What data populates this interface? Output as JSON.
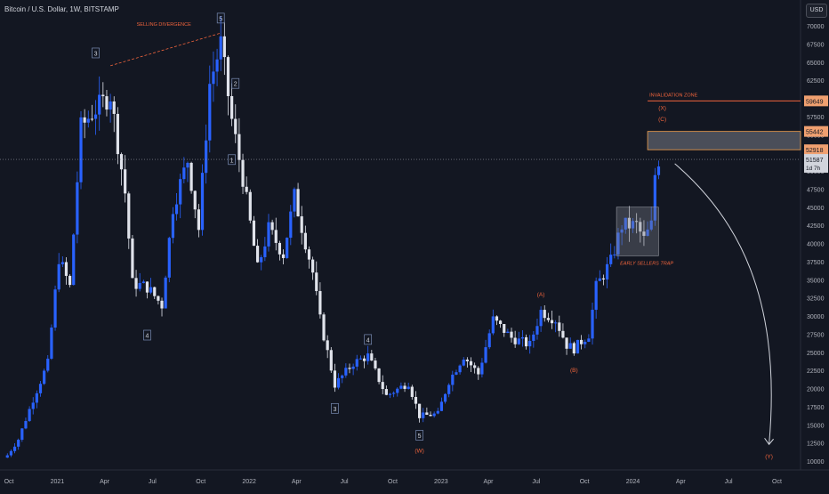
{
  "header": {
    "title": "Bitcoin / U.S. Dollar, 1W, BITSTAMP",
    "currency_button": "USD"
  },
  "colors": {
    "background": "#131722",
    "up": "#2962ff",
    "down": "#e0e3eb",
    "annotation": "#f0643c",
    "wave_label": "#7a8db5",
    "zone": "#787b86"
  },
  "chart_data": {
    "type": "candlestick",
    "title": "Bitcoin / U.S. Dollar, 1W, BITSTAMP",
    "xlabel": "",
    "ylabel": "",
    "ylim": [
      9000,
      71500
    ],
    "x_ticks": [
      "Oct",
      "2021",
      "Apr",
      "Jul",
      "Oct",
      "2022",
      "Apr",
      "Jul",
      "Oct",
      "2023",
      "Apr",
      "Jul",
      "Oct",
      "2024",
      "Apr",
      "Jul",
      "Oct"
    ],
    "y_ticks": [
      "70000",
      "67500",
      "65000",
      "62500",
      "60000",
      "57500",
      "55000",
      "52500",
      "50000",
      "47500",
      "45000",
      "42500",
      "40000",
      "37500",
      "35000",
      "32500",
      "30000",
      "27500",
      "25000",
      "22500",
      "20000",
      "17500",
      "15000",
      "12500",
      "10000"
    ],
    "price_markers": [
      {
        "label": "59649",
        "value": 59649
      },
      {
        "label": "55442",
        "value": 55442
      },
      {
        "label": "52918",
        "value": 52918
      }
    ],
    "last_price": {
      "value": 51587,
      "label": "51587",
      "countdown": "1d 7h"
    },
    "trend_points": [
      {
        "t": "2020-09-28",
        "c": 10800
      },
      {
        "t": "2020-10-19",
        "c": 13000
      },
      {
        "t": "2020-11-16",
        "c": 18500
      },
      {
        "t": "2020-12-14",
        "c": 23500
      },
      {
        "t": "2021-01-04",
        "c": 38000
      },
      {
        "t": "2021-01-25",
        "c": 34000
      },
      {
        "t": "2021-02-15",
        "c": 56000
      },
      {
        "t": "2021-03-08",
        "c": 58000
      },
      {
        "t": "2021-04-12",
        "c": 60500
      },
      {
        "t": "2021-05-10",
        "c": 47000
      },
      {
        "t": "2021-05-24",
        "c": 34500
      },
      {
        "t": "2021-06-21",
        "c": 34000
      },
      {
        "t": "2021-07-19",
        "c": 31500
      },
      {
        "t": "2021-08-09",
        "c": 45000
      },
      {
        "t": "2021-09-06",
        "c": 51500
      },
      {
        "t": "2021-09-27",
        "c": 42000
      },
      {
        "t": "2021-10-18",
        "c": 62000
      },
      {
        "t": "2021-11-08",
        "c": 67500
      },
      {
        "t": "2021-11-29",
        "c": 57000
      },
      {
        "t": "2021-12-20",
        "c": 49000
      },
      {
        "t": "2022-01-17",
        "c": 36500
      },
      {
        "t": "2022-02-07",
        "c": 42000
      },
      {
        "t": "2022-03-07",
        "c": 38500
      },
      {
        "t": "2022-03-28",
        "c": 46500
      },
      {
        "t": "2022-05-02",
        "c": 36000
      },
      {
        "t": "2022-05-16",
        "c": 29500
      },
      {
        "t": "2022-06-13",
        "c": 20500
      },
      {
        "t": "2022-07-18",
        "c": 23500
      },
      {
        "t": "2022-08-15",
        "c": 24500
      },
      {
        "t": "2022-09-19",
        "c": 19000
      },
      {
        "t": "2022-10-31",
        "c": 20800
      },
      {
        "t": "2022-11-21",
        "c": 16200
      },
      {
        "t": "2022-12-26",
        "c": 16500
      },
      {
        "t": "2023-01-16",
        "c": 21000
      },
      {
        "t": "2023-02-13",
        "c": 24500
      },
      {
        "t": "2023-03-13",
        "c": 22000
      },
      {
        "t": "2023-04-10",
        "c": 29500
      },
      {
        "t": "2023-05-15",
        "c": 27000
      },
      {
        "t": "2023-06-19",
        "c": 26000
      },
      {
        "t": "2023-07-10",
        "c": 30700
      },
      {
        "t": "2023-08-07",
        "c": 29500
      },
      {
        "t": "2023-08-28",
        "c": 26000
      },
      {
        "t": "2023-09-11",
        "c": 25500
      },
      {
        "t": "2023-10-09",
        "c": 27500
      },
      {
        "t": "2023-10-23",
        "c": 34000
      },
      {
        "t": "2023-11-20",
        "c": 37500
      },
      {
        "t": "2023-12-11",
        "c": 42500
      },
      {
        "t": "2024-01-08",
        "c": 42500
      },
      {
        "t": "2024-01-22",
        "c": 40500
      },
      {
        "t": "2024-02-05",
        "c": 42500
      },
      {
        "t": "2024-02-12",
        "c": 49500
      },
      {
        "t": "2024-02-19",
        "c": 51587
      }
    ],
    "wave_labels": [
      {
        "label": "3",
        "t": "2021-03-15",
        "v": 66200,
        "boxed": true
      },
      {
        "label": "5",
        "t": "2021-11-08",
        "v": 71000,
        "boxed": true
      },
      {
        "label": "2",
        "t": "2021-12-06",
        "v": 62000,
        "boxed": true
      },
      {
        "label": "1",
        "t": "2021-11-29",
        "v": 51500,
        "boxed": true
      },
      {
        "label": "4",
        "t": "2021-06-21",
        "v": 27300,
        "boxed": true
      },
      {
        "label": "4",
        "t": "2022-08-15",
        "v": 26700,
        "boxed": true
      },
      {
        "label": "3",
        "t": "2022-06-13",
        "v": 17200,
        "boxed": true
      },
      {
        "label": "5",
        "t": "2022-11-21",
        "v": 13500,
        "boxed": true
      },
      {
        "label": "(W)",
        "t": "2022-11-21",
        "v": 11500,
        "boxed": false
      },
      {
        "label": "(A)",
        "t": "2023-07-10",
        "v": 33000,
        "boxed": false
      },
      {
        "label": "(B)",
        "t": "2023-09-11",
        "v": 22600,
        "boxed": false
      },
      {
        "label": "(X)",
        "t": "2024-02-26",
        "v": 58700,
        "boxed": false
      },
      {
        "label": "(C)",
        "t": "2024-02-26",
        "v": 57200,
        "boxed": false
      },
      {
        "label": "(Y)",
        "t": "2024-09-16",
        "v": 10700,
        "boxed": false
      }
    ],
    "annotations": {
      "selling_divergence": "SELLING DIVERGENCE",
      "invalidation_zone": "INVALIDATION ZONE",
      "early_sellers_trap": "EARLY SELLERS TRAP"
    },
    "invalidation_level": 59649,
    "resistance_zone": [
      52918,
      55442
    ],
    "trap_zone": {
      "from": "2023-12-11",
      "to": "2024-02-12",
      "low": 38300,
      "high": 45000
    },
    "projection": {
      "from_t": "2024-02-26",
      "from_v": 51000,
      "to_t": "2024-09-16",
      "to_v": 12300
    },
    "divergence_line": {
      "from_t": "2021-04-12",
      "from_v": 64500,
      "to_t": "2021-11-08",
      "to_v": 69000
    }
  }
}
